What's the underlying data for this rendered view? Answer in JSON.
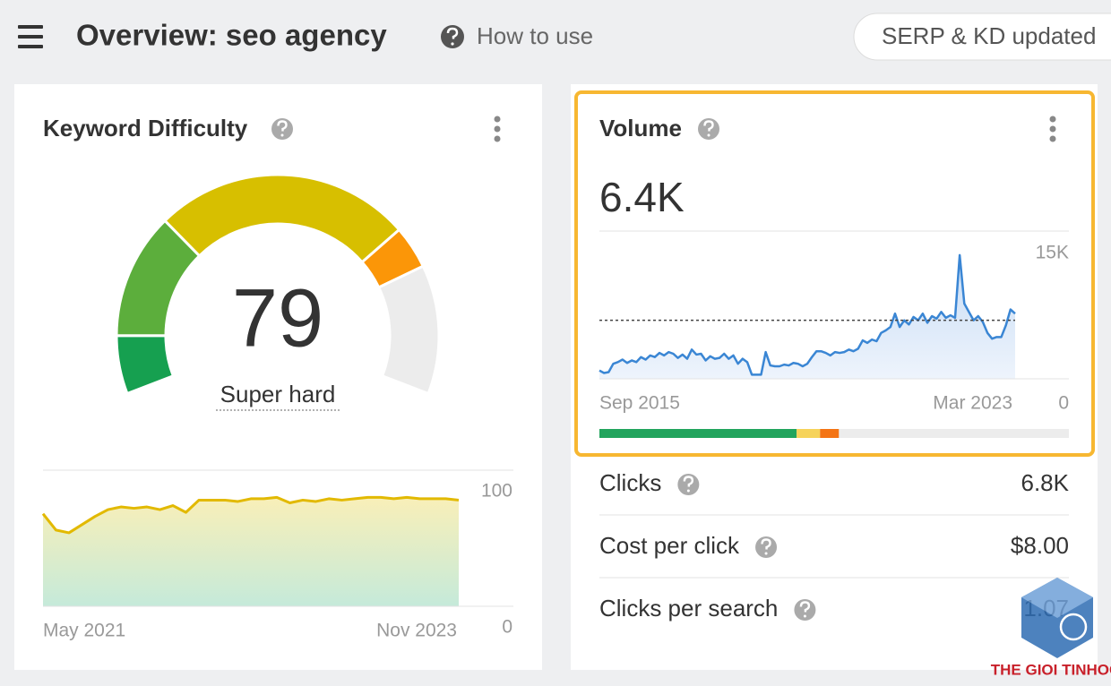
{
  "header": {
    "title": "Overview: seo agency",
    "help": "How to use",
    "badge": "SERP & KD updated"
  },
  "kd_card": {
    "title": "Keyword Difficulty",
    "value": 79,
    "label": "Super hard",
    "chart": {
      "type": "line",
      "color": "#e2b900",
      "start_label": "May 2021",
      "end_label": "Nov 2023",
      "ylim": [
        0,
        100
      ],
      "yticks": [
        0,
        100
      ],
      "values": [
        68,
        56,
        54,
        60,
        66,
        71,
        73,
        72,
        73,
        71,
        74,
        69,
        78,
        78,
        78,
        77,
        79,
        79,
        80,
        76,
        78,
        77,
        79,
        78,
        79,
        80,
        80,
        79,
        80,
        79,
        79,
        79,
        78
      ]
    }
  },
  "volume_card": {
    "title": "Volume",
    "value": "6.4K",
    "chart": {
      "type": "line",
      "color": "#3a86d4",
      "start_label": "Sep 2015",
      "end_label": "Mar 2023",
      "ylim": [
        0,
        15000
      ],
      "yticks": [
        0,
        {
          "value": 15000,
          "label": "15K"
        }
      ],
      "reference_line": 7000,
      "values": [
        1000,
        700,
        800,
        1800,
        2000,
        2300,
        1900,
        2200,
        2000,
        2600,
        2300,
        2800,
        2600,
        3100,
        2800,
        3200,
        3000,
        2500,
        2900,
        2400,
        3500,
        2900,
        3000,
        2200,
        2700,
        2400,
        2500,
        3000,
        2400,
        2800,
        1800,
        2400,
        2000,
        500,
        500,
        500,
        3200,
        1600,
        1500,
        1500,
        1700,
        1600,
        1900,
        1800,
        1500,
        1800,
        2600,
        3300,
        3300,
        3100,
        2800,
        3200,
        3100,
        3200,
        3500,
        3300,
        3600,
        4600,
        4300,
        4700,
        4500,
        5500,
        5800,
        6200,
        7800,
        6200,
        7000,
        6500,
        7400,
        7000,
        7800,
        6700,
        7500,
        7200,
        8000,
        7300,
        7600,
        7300,
        14800,
        9000,
        8000,
        7000,
        7500,
        6800,
        5500,
        4800,
        5000,
        5000,
        6400,
        8300,
        7800
      ]
    },
    "intent_bar": [
      {
        "color": "#22a45d",
        "value": 42
      },
      {
        "color": "#f6d35a",
        "value": 5
      },
      {
        "color": "#f47414",
        "value": 4
      }
    ]
  },
  "metrics": [
    {
      "label": "Clicks",
      "value": "6.8K"
    },
    {
      "label": "Cost per click",
      "value": "$8.00"
    },
    {
      "label": "Clicks per search",
      "value": "1.07"
    }
  ],
  "watermark": "THE GIOI TINHOC"
}
